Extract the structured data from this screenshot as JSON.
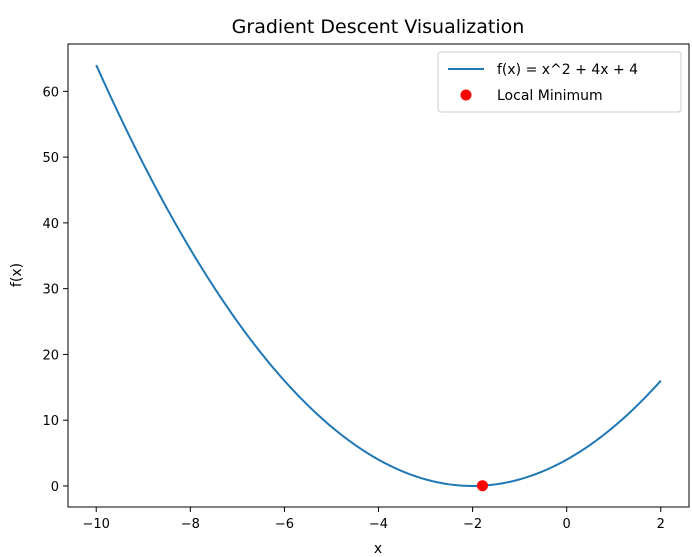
{
  "chart_data": {
    "type": "line",
    "title": "Gradient Descent Visualization",
    "xlabel": "x",
    "ylabel": "f(x)",
    "xlim": [
      -10.6,
      2.6
    ],
    "ylim": [
      -3.2,
      67.2
    ],
    "xticks": [
      -10,
      -8,
      -6,
      -4,
      -2,
      0,
      2
    ],
    "yticks": [
      0,
      10,
      20,
      30,
      40,
      50,
      60
    ],
    "xtick_labels": [
      "−10",
      "−8",
      "−6",
      "−4",
      "−2",
      "0",
      "2"
    ],
    "ytick_labels": [
      "0",
      "10",
      "20",
      "30",
      "40",
      "50",
      "60"
    ],
    "grid": false,
    "legend_position": "top-right",
    "series": [
      {
        "name": "f(x) = x^2 + 4x + 4",
        "type": "line",
        "function": "x^2 + 4x + 4",
        "x_range": [
          -10,
          2
        ],
        "color": "#1f77b4"
      },
      {
        "name": "Local Minimum",
        "type": "scatter",
        "x": [
          -1.79
        ],
        "y": [
          0.04
        ],
        "color": "#ff0000"
      }
    ]
  }
}
